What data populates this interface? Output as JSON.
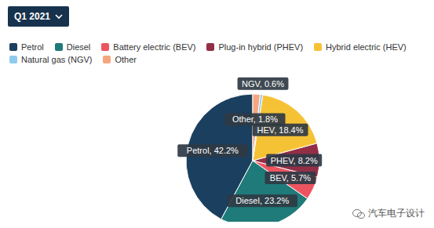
{
  "chart_data": {
    "type": "pie",
    "title": "Q1 2021",
    "categories": [
      "Petrol",
      "Diesel",
      "Battery electric (BEV)",
      "Plug-in hybrid (PHEV)",
      "Hybrid electric (HEV)",
      "Natural gas (NGV)",
      "Other"
    ],
    "values": [
      42.2,
      23.2,
      5.7,
      8.2,
      18.4,
      0.6,
      1.8
    ],
    "value_labels": [
      "Petrol, 42.2%",
      "Diesel, 23.2%",
      "BEV, 5.7%",
      "PHEV, 8.2%",
      "HEV, 18.4%",
      "NGV, 0.6%",
      "Other, 1.8%"
    ],
    "colors": [
      "#1b3f5e",
      "#1f7b79",
      "#ec5560",
      "#922f47",
      "#f6c235",
      "#8ecbee",
      "#f5a680"
    ],
    "data_labels": true,
    "annotations": [
      "汽车电子设计"
    ]
  }
}
